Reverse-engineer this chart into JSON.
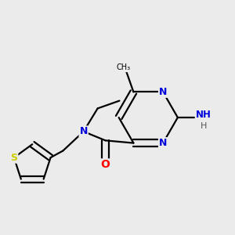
{
  "background_color": "#ebebeb",
  "atom_colors": {
    "N": "#0000dd",
    "O": "#ff0000",
    "S": "#cccc00",
    "C": "#000000",
    "H": "#555555"
  },
  "bond_color": "#000000",
  "bond_width": 1.6,
  "fig_size": [
    3.0,
    3.0
  ],
  "dpi": 100
}
